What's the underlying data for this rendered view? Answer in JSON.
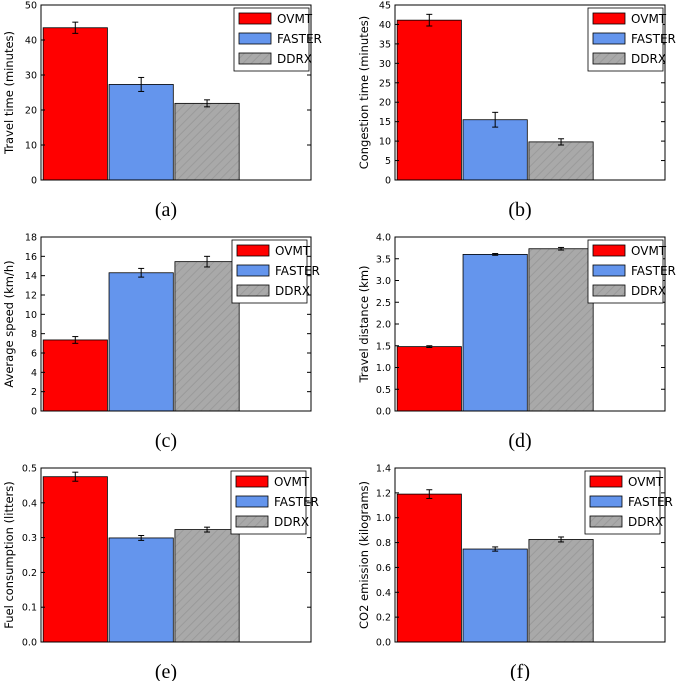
{
  "chart_data": [
    {
      "type": "bar",
      "panel": "(a)",
      "ylabel": "Travel time (minutes)",
      "ylim": [
        0,
        50
      ],
      "yticks": [
        "0",
        "10",
        "20",
        "30",
        "40",
        "50"
      ],
      "categories": [
        "OVMT",
        "FASTER",
        "DDRX"
      ],
      "values": [
        43.5,
        27.3,
        21.9
      ],
      "errors": [
        1.6,
        2.0,
        1.0
      ],
      "colors": [
        "#ff0000",
        "#6495ed",
        "#a9a9a9"
      ],
      "legend": [
        "OVMT",
        "FASTER",
        "DDRX"
      ]
    },
    {
      "type": "bar",
      "panel": "(b)",
      "ylabel": "Congestion time (minutes)",
      "ylim": [
        0,
        45
      ],
      "yticks": [
        "0",
        "5",
        "10",
        "15",
        "20",
        "25",
        "30",
        "35",
        "40",
        "45"
      ],
      "categories": [
        "OVMT",
        "FASTER",
        "DDRX"
      ],
      "values": [
        41.1,
        15.5,
        9.8
      ],
      "errors": [
        1.5,
        1.9,
        0.8
      ],
      "colors": [
        "#ff0000",
        "#6495ed",
        "#a9a9a9"
      ],
      "legend": [
        "OVMT",
        "FASTER",
        "DDRX"
      ]
    },
    {
      "type": "bar",
      "panel": "(c)",
      "ylabel": "Average speed (km/h)",
      "ylim": [
        0,
        18
      ],
      "yticks": [
        "0",
        "2",
        "4",
        "6",
        "8",
        "10",
        "12",
        "14",
        "16",
        "18"
      ],
      "categories": [
        "OVMT",
        "FASTER",
        "DDRX"
      ],
      "values": [
        7.35,
        14.3,
        15.45
      ],
      "errors": [
        0.35,
        0.45,
        0.55
      ],
      "colors": [
        "#ff0000",
        "#6495ed",
        "#a9a9a9"
      ],
      "legend": [
        "OVMT",
        "FASTER",
        "DDRX"
      ]
    },
    {
      "type": "bar",
      "panel": "(d)",
      "ylabel": "Travel distance (km)",
      "ylim": [
        0,
        4.0
      ],
      "yticks": [
        "0.0",
        "0.5",
        "1.0",
        "1.5",
        "2.0",
        "2.5",
        "3.0",
        "3.5",
        "4.0"
      ],
      "categories": [
        "OVMT",
        "FASTER",
        "DDRX"
      ],
      "values": [
        1.48,
        3.6,
        3.73
      ],
      "errors": [
        0.02,
        0.02,
        0.03
      ],
      "colors": [
        "#ff0000",
        "#6495ed",
        "#a9a9a9"
      ],
      "legend": [
        "OVMT",
        "FASTER",
        "DDRX"
      ]
    },
    {
      "type": "bar",
      "panel": "(e)",
      "ylabel": "Fuel consumption (litters)",
      "ylim": [
        0,
        0.5
      ],
      "yticks": [
        "0.0",
        "0.1",
        "0.2",
        "0.3",
        "0.4",
        "0.5"
      ],
      "categories": [
        "OVMT",
        "FASTER",
        "DDRX"
      ],
      "values": [
        0.475,
        0.299,
        0.323
      ],
      "errors": [
        0.013,
        0.007,
        0.007
      ],
      "colors": [
        "#ff0000",
        "#6495ed",
        "#a9a9a9"
      ],
      "legend": [
        "OVMT",
        "FASTER",
        "DDRX"
      ]
    },
    {
      "type": "bar",
      "panel": "(f)",
      "ylabel": "CO2 emission (kilograms)",
      "ylim": [
        0,
        1.4
      ],
      "yticks": [
        "0.0",
        "0.2",
        "0.4",
        "0.6",
        "0.8",
        "1.0",
        "1.2",
        "1.4"
      ],
      "categories": [
        "OVMT",
        "FASTER",
        "DDRX"
      ],
      "values": [
        1.19,
        0.748,
        0.825
      ],
      "errors": [
        0.035,
        0.017,
        0.02
      ],
      "colors": [
        "#ff0000",
        "#6495ed",
        "#a9a9a9"
      ],
      "legend": [
        "OVMT",
        "FASTER",
        "DDRX"
      ]
    }
  ]
}
